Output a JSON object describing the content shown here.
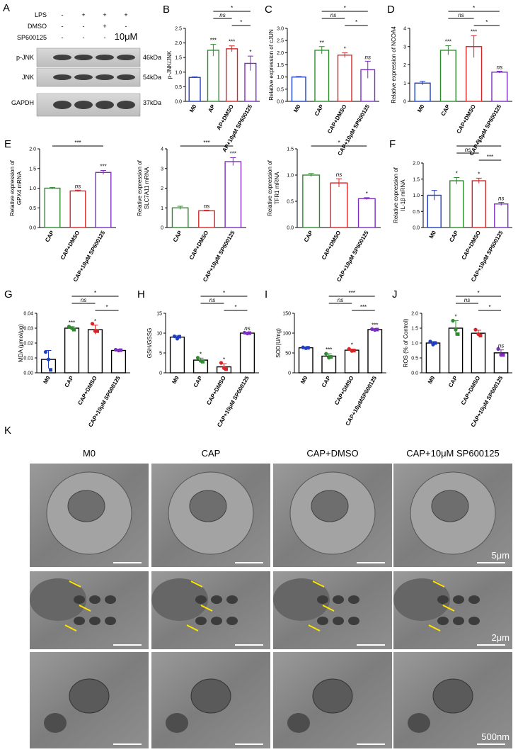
{
  "blot": {
    "panel": "A",
    "conditions": [
      {
        "label": "LPS",
        "values": [
          "-",
          "+",
          "+",
          "+"
        ]
      },
      {
        "label": "DMSO",
        "values": [
          "-",
          "-",
          "+",
          "-"
        ]
      },
      {
        "label": "SP600125",
        "values": [
          "-",
          "-",
          "-",
          "10μM"
        ]
      }
    ],
    "bands": [
      {
        "name": "p-JNK",
        "size": "46kDa"
      },
      {
        "name": "JNK",
        "size": "54kDa"
      },
      {
        "name": "GAPDH",
        "size": "37kDa"
      }
    ]
  },
  "chart_data": [
    {
      "type": "bar",
      "panel": "B",
      "ylabel": "p-JNK/JNK",
      "categories": [
        "M0",
        "AP",
        "AP+DMSO",
        "AP+10μM SP600125"
      ],
      "values": [
        0.82,
        1.75,
        1.8,
        1.3
      ],
      "errors": [
        0.02,
        0.2,
        0.1,
        0.25
      ],
      "colors": [
        "#1f3fbf",
        "#2e8b2e",
        "#d62728",
        "#7b2fbf"
      ],
      "significance": [
        null,
        "***",
        "***",
        "*"
      ],
      "comparisons": [
        {
          "between": [
            1,
            3
          ],
          "label": "*"
        },
        {
          "between": [
            1,
            2
          ],
          "label": "ns"
        },
        {
          "between": [
            2,
            3
          ],
          "label": "*"
        }
      ],
      "ylim": [
        0,
        2.5
      ],
      "yticks": [
        {
          "value": 0,
          "label": "0.0"
        },
        0.5,
        {
          "value": 1,
          "label": "1.0"
        },
        1.5,
        {
          "value": 2,
          "label": "2.0"
        },
        2.5
      ]
    },
    {
      "type": "bar",
      "panel": "C",
      "ylabel": "Relative expression of cJUN",
      "categories": [
        "M0",
        "CAP",
        "CAP+DMSO",
        "CAP+10μM SP600125"
      ],
      "values": [
        1.0,
        2.1,
        1.9,
        1.3
      ],
      "errors": [
        0.02,
        0.15,
        0.1,
        0.35
      ],
      "colors": [
        "#1f3fbf",
        "#2e8b2e",
        "#d62728",
        "#7b2fbf"
      ],
      "significance": [
        null,
        "**",
        "*",
        "ns"
      ],
      "comparisons": [
        {
          "between": [
            1,
            3
          ],
          "label": "*"
        },
        {
          "between": [
            1,
            2
          ],
          "label": "ns"
        },
        {
          "between": [
            2,
            3
          ],
          "label": "*"
        }
      ],
      "ylim": [
        0,
        3
      ],
      "yticks": [
        {
          "value": 0,
          "label": "0.0"
        },
        0.5,
        {
          "value": 1,
          "label": "1.0"
        },
        1.5,
        {
          "value": 2,
          "label": "2.0"
        },
        2.5,
        {
          "value": 3,
          "label": "3.0"
        }
      ]
    },
    {
      "type": "bar",
      "panel": "D",
      "ylabel": "Relative expression of NCOA4",
      "categories": [
        "M0",
        "CAP",
        "CAP+DMSO",
        "CAP+10μM SP600125"
      ],
      "values": [
        1.0,
        2.8,
        3.0,
        1.6
      ],
      "errors": [
        0.1,
        0.25,
        0.6,
        0.05
      ],
      "colors": [
        "#1f3fbf",
        "#2e8b2e",
        "#d62728",
        "#7b2fbf"
      ],
      "significance": [
        null,
        "***",
        "***",
        "ns"
      ],
      "comparisons": [
        {
          "between": [
            1,
            3
          ],
          "label": "*"
        },
        {
          "between": [
            1,
            2
          ],
          "label": "ns"
        },
        {
          "between": [
            2,
            3
          ],
          "label": "*"
        }
      ],
      "ylim": [
        0,
        4
      ],
      "yticks": [
        0,
        1,
        2,
        3,
        4
      ]
    },
    {
      "type": "bar",
      "panel": "E",
      "ylabel": [
        "Relative expression of",
        "GPX4 mRNA"
      ],
      "categories": [
        "CAP",
        "CAP+DMSO",
        "CAP+10μM SP600125"
      ],
      "values": [
        1.0,
        0.93,
        1.4
      ],
      "errors": [
        0.02,
        0.02,
        0.05
      ],
      "colors": [
        "#2e8b2e",
        "#d62728",
        "#7b2fbf"
      ],
      "significance": [
        null,
        "ns",
        "***"
      ],
      "comparisons": [
        {
          "between": [
            0,
            2
          ],
          "label": "***"
        }
      ],
      "ylim": [
        0,
        2
      ],
      "yticks": [
        {
          "value": 0,
          "label": "0.0"
        },
        0.5,
        {
          "value": 1,
          "label": "1.0"
        },
        1.5,
        {
          "value": 2,
          "label": "2.0"
        }
      ]
    },
    {
      "type": "bar",
      "ylabel": [
        "Relative expression of",
        "SLC7A11 mRNA"
      ],
      "categories": [
        "CAP",
        "CAP+DMSO",
        "CAP+10μM SP600125"
      ],
      "values": [
        1.0,
        0.85,
        3.35
      ],
      "errors": [
        0.08,
        0.03,
        0.2
      ],
      "colors": [
        "#2e8b2e",
        "#d62728",
        "#7b2fbf"
      ],
      "significance": [
        null,
        "ns",
        "***"
      ],
      "comparisons": [
        {
          "between": [
            0,
            2
          ],
          "label": "***"
        }
      ],
      "ylim": [
        0,
        4
      ],
      "yticks": [
        0,
        1,
        2,
        3,
        4
      ]
    },
    {
      "type": "bar",
      "ylabel": [
        "Relative expression of",
        "TFR1 mRNA"
      ],
      "categories": [
        "CAP",
        "CAP+DMSO",
        "CAP+10μM SP600125"
      ],
      "values": [
        1.0,
        0.85,
        0.55
      ],
      "errors": [
        0.03,
        0.08,
        0.02
      ],
      "colors": [
        "#2e8b2e",
        "#d62728",
        "#7b2fbf"
      ],
      "significance": [
        null,
        "ns",
        "*"
      ],
      "comparisons": [
        {
          "between": [
            0,
            2
          ],
          "label": "*"
        }
      ],
      "ylim": [
        0,
        1.5
      ],
      "yticks": [
        {
          "value": 0,
          "label": "0.0"
        },
        0.5,
        {
          "value": 1,
          "label": "1.0"
        },
        1.5
      ]
    },
    {
      "type": "bar",
      "panel": "F",
      "ylabel": [
        "Relative expression of",
        "IL-1β mRNA"
      ],
      "categories": [
        "M0",
        "CAP",
        "CAP+DMSO",
        "CAP+10μM SP600125"
      ],
      "values": [
        1.0,
        1.45,
        1.45,
        0.73
      ],
      "errors": [
        0.15,
        0.1,
        0.08,
        0.05
      ],
      "colors": [
        "#1f3fbf",
        "#2e8b2e",
        "#d62728",
        "#7b2fbf"
      ],
      "significance": [
        null,
        "*",
        "*",
        "ns"
      ],
      "comparisons": [
        {
          "between": [
            1,
            3
          ],
          "label": "***"
        },
        {
          "between": [
            1,
            2
          ],
          "label": "ns"
        },
        {
          "between": [
            2,
            3
          ],
          "label": "***"
        }
      ],
      "ylim": [
        0,
        2
      ],
      "yticks": [
        {
          "value": 0,
          "label": "0.0"
        },
        0.5,
        {
          "value": 1,
          "label": "1.0"
        },
        1.5,
        {
          "value": 2,
          "label": "2.0"
        }
      ]
    },
    {
      "type": "bar",
      "panel": "G",
      "ylabel": "MDA (μmol/μg)",
      "categories": [
        "M0",
        "CAP",
        "CAP+DMSO",
        "CAP+10μM SP600125"
      ],
      "values": [
        0.009,
        0.03,
        0.029,
        0.015
      ],
      "errors": [
        0.006,
        0.001,
        0.003,
        0.0005
      ],
      "bar_color": "#000",
      "colors": [
        "#1f3fbf",
        "#2e8b2e",
        "#d62728",
        "#7b2fbf"
      ],
      "points": [
        [
          0.014,
          0.009,
          0.002
        ],
        [
          0.031,
          0.03,
          0.029
        ],
        [
          0.033,
          0.028,
          0.028
        ],
        [
          0.0155,
          0.015,
          0.0152
        ]
      ],
      "significance": [
        null,
        "***",
        "*",
        null
      ],
      "comparisons": [
        {
          "between": [
            1,
            3
          ],
          "label": "*"
        },
        {
          "between": [
            1,
            2
          ],
          "label": "ns"
        },
        {
          "between": [
            2,
            3
          ],
          "label": "*"
        }
      ],
      "ylim": [
        0,
        0.04
      ],
      "yticks": [
        {
          "value": 0,
          "label": "0.00"
        },
        0.01,
        0.02,
        0.03,
        0.04
      ]
    },
    {
      "type": "bar",
      "panel": "H",
      "ylabel": "GSH/GSSG",
      "categories": [
        "M0",
        "CAP",
        "CAP+DMSO",
        "CAP+10μM SP600125"
      ],
      "values": [
        9,
        3.2,
        1.5,
        10
      ],
      "errors": [
        0.3,
        0.5,
        0.8,
        0.2
      ],
      "bar_color": "#000",
      "colors": [
        "#1f3fbf",
        "#2e8b2e",
        "#d62728",
        "#7b2fbf"
      ],
      "points": [
        [
          9.2,
          8.6,
          9.1
        ],
        [
          3.8,
          3.0,
          2.8
        ],
        [
          2.5,
          1.2,
          0.9
        ],
        [
          10.1,
          9.9,
          10.0
        ]
      ],
      "significance": [
        null,
        "*",
        "*",
        "ns"
      ],
      "comparisons": [
        {
          "between": [
            1,
            3
          ],
          "label": "*"
        },
        {
          "between": [
            1,
            2
          ],
          "label": "ns"
        },
        {
          "between": [
            2,
            3
          ],
          "label": "*"
        }
      ],
      "ylim": [
        0,
        15
      ],
      "yticks": [
        0,
        5,
        10,
        15
      ]
    },
    {
      "type": "bar",
      "panel": "I",
      "ylabel": "SOD(U/mg)",
      "categories": [
        "M0",
        "CAP",
        "CAP+DMSO",
        "CAP+10μMSP600125"
      ],
      "values": [
        63,
        42,
        57,
        109
      ],
      "errors": [
        2,
        6,
        3,
        1
      ],
      "bar_color": "#000",
      "colors": [
        "#1f3fbf",
        "#2e8b2e",
        "#d62728",
        "#7b2fbf"
      ],
      "points": [
        [
          64,
          62,
          63
        ],
        [
          48,
          38,
          40
        ],
        [
          60,
          55,
          56
        ],
        [
          110,
          108,
          109
        ]
      ],
      "significance": [
        null,
        "***",
        "*",
        "***"
      ],
      "comparisons": [
        {
          "between": [
            1,
            3
          ],
          "label": "***"
        },
        {
          "between": [
            1,
            2
          ],
          "label": "ns"
        },
        {
          "between": [
            2,
            3
          ],
          "label": "***"
        }
      ],
      "ylim": [
        0,
        150
      ],
      "yticks": [
        0,
        50,
        100,
        150
      ]
    },
    {
      "type": "bar",
      "panel": "J",
      "ylabel": "ROS (% of Control)",
      "categories": [
        "M0",
        "CAP",
        "CAP+DMSO",
        "CAP+10μM SP600125"
      ],
      "values": [
        1.0,
        1.5,
        1.33,
        0.67
      ],
      "errors": [
        0.05,
        0.25,
        0.1,
        0.1
      ],
      "bar_color": "#000",
      "colors": [
        "#1f3fbf",
        "#2e8b2e",
        "#d62728",
        "#7b2fbf"
      ],
      "points": [
        [
          1.05,
          0.95,
          1.0
        ],
        [
          1.75,
          1.45,
          1.3
        ],
        [
          1.45,
          1.3,
          1.25
        ],
        [
          0.8,
          0.6,
          0.6
        ]
      ],
      "significance": [
        null,
        "*",
        null,
        "ns"
      ],
      "comparisons": [
        {
          "between": [
            1,
            3
          ],
          "label": "*"
        },
        {
          "between": [
            1,
            2
          ],
          "label": "ns"
        },
        {
          "between": [
            2,
            3
          ],
          "label": "*"
        }
      ],
      "ylim": [
        0,
        2
      ],
      "yticks": [
        {
          "value": 0,
          "label": "0.0"
        },
        0.5,
        {
          "value": 1,
          "label": "1.0"
        },
        1.5,
        {
          "value": 2,
          "label": "2.0"
        }
      ]
    }
  ],
  "micrographs": {
    "panel": "K",
    "columns": [
      "M0",
      "CAP",
      "CAP+DMSO",
      "CAP+10μM SP600125"
    ],
    "scale_bars": [
      "5μm",
      "2μm",
      "500nm"
    ]
  }
}
